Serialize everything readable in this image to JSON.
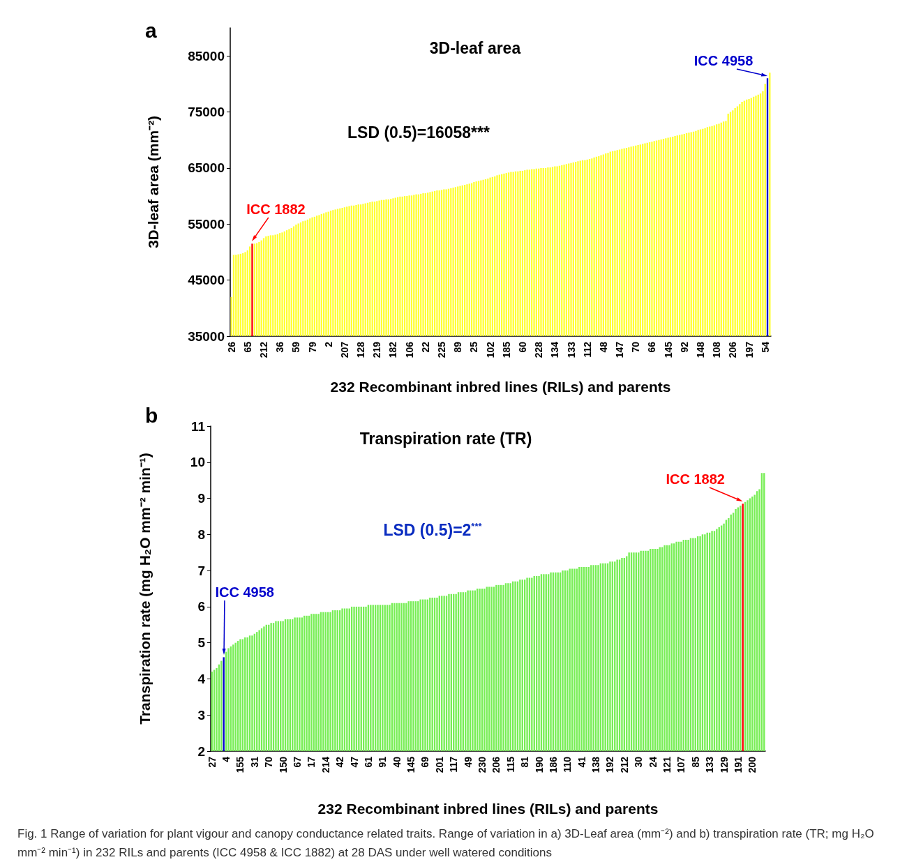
{
  "chart_data": [
    {
      "type": "bar",
      "title": "3D-leaf area",
      "xlabel": "232 Recombinant inbred lines (RILs) and parents",
      "ylabel": "3D-leaf area (mm⁻²)",
      "annotations": [
        "a",
        "ICC 1882",
        "ICC 4958",
        "LSD (0.5)=16058***"
      ],
      "categories": [
        "26",
        null,
        null,
        null,
        null,
        null,
        null,
        "65",
        null,
        null,
        null,
        null,
        null,
        null,
        "212",
        null,
        null,
        null,
        null,
        null,
        null,
        "36",
        null,
        null,
        null,
        null,
        null,
        null,
        "59",
        null,
        null,
        null,
        null,
        null,
        null,
        "79",
        null,
        null,
        null,
        null,
        null,
        null,
        "2",
        null,
        null,
        null,
        null,
        null,
        null,
        "207",
        null,
        null,
        null,
        null,
        null,
        null,
        "128",
        null,
        null,
        null,
        null,
        null,
        null,
        "219",
        null,
        null,
        null,
        null,
        null,
        null,
        "182",
        null,
        null,
        null,
        null,
        null,
        null,
        "106",
        null,
        null,
        null,
        null,
        null,
        null,
        "22",
        null,
        null,
        null,
        null,
        null,
        null,
        "225",
        null,
        null,
        null,
        null,
        null,
        null,
        "89",
        null,
        null,
        null,
        null,
        null,
        null,
        "25",
        null,
        null,
        null,
        null,
        null,
        null,
        "102",
        null,
        null,
        null,
        null,
        null,
        null,
        "185",
        null,
        null,
        null,
        null,
        null,
        null,
        "60",
        null,
        null,
        null,
        null,
        null,
        null,
        "228",
        null,
        null,
        null,
        null,
        null,
        null,
        "134",
        null,
        null,
        null,
        null,
        null,
        null,
        "133",
        null,
        null,
        null,
        null,
        null,
        null,
        "112",
        null,
        null,
        null,
        null,
        null,
        null,
        "48",
        null,
        null,
        null,
        null,
        null,
        null,
        "147",
        null,
        null,
        null,
        null,
        null,
        null,
        "70",
        null,
        null,
        null,
        null,
        null,
        null,
        "66",
        null,
        null,
        null,
        null,
        null,
        null,
        "145",
        null,
        null,
        null,
        null,
        null,
        null,
        "92",
        null,
        null,
        null,
        null,
        null,
        null,
        "148",
        null,
        null,
        null,
        null,
        null,
        null,
        "108",
        null,
        null,
        null,
        null,
        null,
        null,
        "206",
        null,
        null,
        null,
        null,
        null,
        null,
        "197",
        null,
        null,
        null,
        null,
        null,
        null,
        "54",
        null,
        null
      ],
      "values": [
        42000,
        49500,
        49500,
        49600,
        49700,
        49800,
        50000,
        50300,
        51000,
        51500,
        51500,
        51600,
        51800,
        52100,
        52500,
        52800,
        52900,
        53000,
        53000,
        53100,
        53200,
        53400,
        53500,
        53700,
        53900,
        54100,
        54300,
        54600,
        54900,
        55100,
        55300,
        55500,
        55600,
        55800,
        56000,
        56200,
        56300,
        56500,
        56600,
        56800,
        56900,
        57100,
        57200,
        57400,
        57500,
        57600,
        57700,
        57800,
        57900,
        58000,
        58100,
        58200,
        58300,
        58300,
        58400,
        58500,
        58500,
        58600,
        58700,
        58800,
        58900,
        59000,
        59000,
        59100,
        59200,
        59300,
        59300,
        59400,
        59400,
        59500,
        59600,
        59700,
        59800,
        59900,
        59900,
        60000,
        60000,
        60100,
        60100,
        60200,
        60300,
        60300,
        60400,
        60500,
        60500,
        60600,
        60700,
        60800,
        60900,
        61000,
        61000,
        61100,
        61200,
        61200,
        61300,
        61400,
        61500,
        61600,
        61700,
        61800,
        61900,
        62000,
        62100,
        62200,
        62300,
        62500,
        62600,
        62700,
        62800,
        62900,
        63000,
        63100,
        63300,
        63400,
        63500,
        63700,
        63800,
        63900,
        64000,
        64100,
        64200,
        64300,
        64300,
        64400,
        64400,
        64500,
        64500,
        64600,
        64700,
        64700,
        64800,
        64800,
        64900,
        64900,
        65000,
        65000,
        65000,
        65100,
        65100,
        65200,
        65300,
        65300,
        65400,
        65500,
        65600,
        65700,
        65800,
        65900,
        66000,
        66100,
        66200,
        66300,
        66400,
        66400,
        66500,
        66600,
        66700,
        66900,
        67000,
        67100,
        67300,
        67400,
        67600,
        67700,
        67900,
        68000,
        68100,
        68200,
        68300,
        68400,
        68500,
        68600,
        68700,
        68800,
        68900,
        69000,
        69100,
        69200,
        69300,
        69400,
        69500,
        69600,
        69700,
        69800,
        69900,
        70000,
        70100,
        70200,
        70300,
        70400,
        70500,
        70600,
        70700,
        70800,
        70900,
        71000,
        71100,
        71200,
        71300,
        71400,
        71500,
        71600,
        71800,
        71900,
        72000,
        72100,
        72300,
        72400,
        72500,
        72600,
        72800,
        72900,
        73100,
        73300,
        73400,
        74700,
        75000,
        75300,
        75700,
        76000,
        76400,
        76800,
        77000,
        77200,
        77300,
        77500,
        77700,
        77900,
        78100,
        78300,
        78700,
        80000,
        81000,
        82000
      ],
      "colors": [
        "#ffff33",
        "#ffff33",
        "#ffff33",
        "#ffff33",
        "#ffff33",
        "#ffff33",
        "#ffff33",
        "#ffff33",
        "#ffff33",
        "#ff0000",
        "#ffff33",
        "#ffff33",
        "#ffff33",
        "#ffff33",
        "#ffff33",
        "#ffff33",
        "#ffff33",
        "#ffff33",
        "#ffff33",
        "#ffff33",
        "#ffff33",
        "#ffff33",
        "#ffff33",
        "#ffff33",
        "#ffff33",
        "#ffff33",
        "#ffff33",
        "#ffff33",
        "#ffff33",
        "#ffff33",
        "#ffff33",
        "#ffff33",
        "#ffff33",
        "#ffff33",
        "#ffff33",
        "#ffff33",
        "#ffff33",
        "#ffff33",
        "#ffff33",
        "#ffff33",
        "#ffff33",
        "#ffff33",
        "#ffff33",
        "#ffff33",
        "#ffff33",
        "#ffff33",
        "#ffff33",
        "#ffff33",
        "#ffff33",
        "#ffff33",
        "#ffff33",
        "#ffff33",
        "#ffff33",
        "#ffff33",
        "#ffff33",
        "#ffff33",
        "#ffff33",
        "#ffff33",
        "#ffff33",
        "#ffff33",
        "#ffff33",
        "#ffff33",
        "#ffff33",
        "#ffff33",
        "#ffff33",
        "#ffff33",
        "#ffff33",
        "#ffff33",
        "#ffff33",
        "#ffff33",
        "#ffff33",
        "#ffff33",
        "#ffff33",
        "#ffff33",
        "#ffff33",
        "#ffff33",
        "#ffff33",
        "#ffff33",
        "#ffff33",
        "#ffff33",
        "#ffff33",
        "#ffff33",
        "#ffff33",
        "#ffff33",
        "#ffff33",
        "#ffff33",
        "#ffff33",
        "#ffff33",
        "#ffff33",
        "#ffff33",
        "#ffff33",
        "#ffff33",
        "#ffff33",
        "#ffff33",
        "#ffff33",
        "#ffff33",
        "#ffff33",
        "#ffff33",
        "#ffff33",
        "#ffff33",
        "#ffff33",
        "#ffff33",
        "#ffff33",
        "#ffff33",
        "#ffff33",
        "#ffff33",
        "#ffff33",
        "#ffff33",
        "#ffff33",
        "#ffff33",
        "#ffff33",
        "#ffff33",
        "#ffff33",
        "#ffff33",
        "#ffff33",
        "#ffff33",
        "#ffff33",
        "#ffff33",
        "#ffff33",
        "#ffff33",
        "#ffff33",
        "#ffff33",
        "#ffff33",
        "#ffff33",
        "#ffff33",
        "#ffff33",
        "#ffff33",
        "#ffff33",
        "#ffff33",
        "#ffff33",
        "#ffff33",
        "#ffff33",
        "#ffff33",
        "#ffff33",
        "#ffff33",
        "#ffff33",
        "#ffff33",
        "#ffff33",
        "#ffff33",
        "#ffff33",
        "#ffff33",
        "#ffff33",
        "#ffff33",
        "#ffff33",
        "#ffff33",
        "#ffff33",
        "#ffff33",
        "#ffff33",
        "#ffff33",
        "#ffff33",
        "#ffff33",
        "#ffff33",
        "#ffff33",
        "#ffff33",
        "#ffff33",
        "#ffff33",
        "#ffff33",
        "#ffff33",
        "#ffff33",
        "#ffff33",
        "#ffff33",
        "#ffff33",
        "#ffff33",
        "#ffff33",
        "#ffff33",
        "#ffff33",
        "#ffff33",
        "#ffff33",
        "#ffff33",
        "#ffff33",
        "#ffff33",
        "#ffff33",
        "#ffff33",
        "#ffff33",
        "#ffff33",
        "#ffff33",
        "#ffff33",
        "#ffff33",
        "#ffff33",
        "#ffff33",
        "#ffff33",
        "#ffff33",
        "#ffff33",
        "#ffff33",
        "#ffff33",
        "#ffff33",
        "#ffff33",
        "#ffff33",
        "#ffff33",
        "#ffff33",
        "#ffff33",
        "#ffff33",
        "#ffff33",
        "#ffff33",
        "#ffff33",
        "#ffff33",
        "#ffff33",
        "#ffff33",
        "#ffff33",
        "#ffff33",
        "#ffff33",
        "#ffff33",
        "#ffff33",
        "#ffff33",
        "#ffff33",
        "#ffff33",
        "#ffff33",
        "#ffff33",
        "#ffff33",
        "#ffff33",
        "#ffff33",
        "#ffff33",
        "#ffff33",
        "#ffff33",
        "#ffff33",
        "#ffff33",
        "#ffff33",
        "#ffff33",
        "#ffff33",
        "#ffff33",
        "#ffff33",
        "#ffff33",
        "#ffff33",
        "#ffff33",
        "#ffff33",
        "#ffff33",
        "#ffff33",
        "#ffff33",
        "#ffff33",
        "#ffff33",
        "#ffff33",
        "#ffff33",
        "#0000cc",
        "#ffff33"
      ],
      "ylim": [
        35000,
        90000
      ],
      "yticks": [
        35000,
        45000,
        55000,
        65000,
        75000,
        85000
      ]
    },
    {
      "type": "bar",
      "title": "Transpiration rate (TR)",
      "xlabel": "232 Recombinant inbred lines (RILs) and parents",
      "ylabel": "Transpiration rate (mg H₂O mm⁻² min⁻¹)",
      "annotations": [
        "b",
        "ICC 4958",
        "ICC 1882",
        "LSD (0.5)=2$^{***}$",
        "Fig. 1 Range of variation for plant vigour and canopy conductance related traits. Range of variation in a) 3D-Leaf area (mm⁻²) and b) transpiration rate (TR; mg H₂O mm⁻² min⁻¹) in 232 RILs and parents (ICC 4958 & ICC 1882) at 28 DAS under well watered conditions"
      ],
      "categories": [
        "27",
        null,
        null,
        null,
        null,
        null,
        "4",
        null,
        null,
        null,
        null,
        null,
        "155",
        null,
        null,
        null,
        null,
        null,
        "31",
        null,
        null,
        null,
        null,
        null,
        "70",
        null,
        null,
        null,
        null,
        null,
        "150",
        null,
        null,
        null,
        null,
        null,
        "67",
        null,
        null,
        null,
        null,
        null,
        "17",
        null,
        null,
        null,
        null,
        null,
        "214",
        null,
        null,
        null,
        null,
        null,
        "42",
        null,
        null,
        null,
        null,
        null,
        "47",
        null,
        null,
        null,
        null,
        null,
        "61",
        null,
        null,
        null,
        null,
        null,
        "91",
        null,
        null,
        null,
        null,
        null,
        "40",
        null,
        null,
        null,
        null,
        null,
        "145",
        null,
        null,
        null,
        null,
        null,
        "69",
        null,
        null,
        null,
        null,
        null,
        "201",
        null,
        null,
        null,
        null,
        null,
        "117",
        null,
        null,
        null,
        null,
        null,
        "49",
        null,
        null,
        null,
        null,
        null,
        "230",
        null,
        null,
        null,
        null,
        null,
        "206",
        null,
        null,
        null,
        null,
        null,
        "115",
        null,
        null,
        null,
        null,
        null,
        "81",
        null,
        null,
        null,
        null,
        null,
        "190",
        null,
        null,
        null,
        null,
        null,
        "186",
        null,
        null,
        null,
        null,
        null,
        "110",
        null,
        null,
        null,
        null,
        null,
        "41",
        null,
        null,
        null,
        null,
        null,
        "138",
        null,
        null,
        null,
        null,
        null,
        "192",
        null,
        null,
        null,
        null,
        null,
        "212",
        null,
        null,
        null,
        null,
        null,
        "30",
        null,
        null,
        null,
        null,
        null,
        "24",
        null,
        null,
        null,
        null,
        null,
        "121",
        null,
        null,
        null,
        null,
        null,
        "107",
        null,
        null,
        null,
        null,
        null,
        "85",
        null,
        null,
        null,
        null,
        null,
        "133",
        null,
        null,
        null,
        null,
        null,
        "129",
        null,
        null,
        null,
        null,
        null,
        "191",
        null,
        null,
        null,
        null,
        null,
        "200",
        null,
        null,
        null,
        null,
        null
      ],
      "values": [
        4.2,
        4.25,
        4.3,
        4.4,
        4.5,
        4.6,
        4.75,
        4.85,
        4.9,
        4.95,
        5.0,
        5.05,
        5.1,
        5.1,
        5.15,
        5.15,
        5.2,
        5.2,
        5.25,
        5.3,
        5.35,
        5.4,
        5.45,
        5.5,
        5.5,
        5.55,
        5.55,
        5.6,
        5.6,
        5.6,
        5.6,
        5.65,
        5.65,
        5.65,
        5.65,
        5.7,
        5.7,
        5.7,
        5.7,
        5.75,
        5.75,
        5.75,
        5.8,
        5.8,
        5.8,
        5.8,
        5.85,
        5.85,
        5.85,
        5.85,
        5.85,
        5.9,
        5.9,
        5.9,
        5.9,
        5.95,
        5.95,
        5.95,
        5.95,
        6.0,
        6.0,
        6.0,
        6.0,
        6.0,
        6.0,
        6.0,
        6.05,
        6.05,
        6.05,
        6.05,
        6.05,
        6.05,
        6.05,
        6.05,
        6.05,
        6.05,
        6.1,
        6.1,
        6.1,
        6.1,
        6.1,
        6.1,
        6.1,
        6.15,
        6.15,
        6.15,
        6.15,
        6.15,
        6.2,
        6.2,
        6.2,
        6.2,
        6.25,
        6.25,
        6.25,
        6.25,
        6.3,
        6.3,
        6.3,
        6.3,
        6.35,
        6.35,
        6.35,
        6.35,
        6.4,
        6.4,
        6.4,
        6.4,
        6.45,
        6.45,
        6.45,
        6.45,
        6.5,
        6.5,
        6.5,
        6.5,
        6.55,
        6.55,
        6.55,
        6.55,
        6.6,
        6.6,
        6.6,
        6.6,
        6.65,
        6.65,
        6.65,
        6.7,
        6.7,
        6.7,
        6.75,
        6.75,
        6.75,
        6.8,
        6.8,
        6.8,
        6.85,
        6.85,
        6.85,
        6.9,
        6.9,
        6.9,
        6.9,
        6.95,
        6.95,
        6.95,
        6.95,
        6.95,
        7.0,
        7.0,
        7.0,
        7.05,
        7.05,
        7.05,
        7.05,
        7.1,
        7.1,
        7.1,
        7.1,
        7.1,
        7.15,
        7.15,
        7.15,
        7.15,
        7.2,
        7.2,
        7.2,
        7.2,
        7.25,
        7.25,
        7.25,
        7.3,
        7.3,
        7.35,
        7.35,
        7.4,
        7.5,
        7.5,
        7.5,
        7.5,
        7.5,
        7.55,
        7.55,
        7.55,
        7.55,
        7.6,
        7.6,
        7.6,
        7.6,
        7.65,
        7.65,
        7.7,
        7.7,
        7.7,
        7.75,
        7.75,
        7.8,
        7.8,
        7.8,
        7.85,
        7.85,
        7.85,
        7.9,
        7.9,
        7.9,
        7.95,
        7.95,
        8.0,
        8.0,
        8.05,
        8.05,
        8.1,
        8.1,
        8.15,
        8.2,
        8.25,
        8.3,
        8.4,
        8.45,
        8.55,
        8.6,
        8.7,
        8.75,
        8.8,
        8.85,
        8.9,
        8.95,
        9.0,
        9.05,
        9.1,
        9.2,
        9.25,
        9.7,
        9.7
      ],
      "colors": [
        "#77ee55",
        "#77ee55",
        "#77ee55",
        "#77ee55",
        "#77ee55",
        "#0000cc",
        "#77ee55",
        "#77ee55",
        "#77ee55",
        "#77ee55",
        "#77ee55",
        "#77ee55",
        "#77ee55",
        "#77ee55",
        "#77ee55",
        "#77ee55",
        "#77ee55",
        "#77ee55",
        "#77ee55",
        "#77ee55",
        "#77ee55",
        "#77ee55",
        "#77ee55",
        "#77ee55",
        "#77ee55",
        "#77ee55",
        "#77ee55",
        "#77ee55",
        "#77ee55",
        "#77ee55",
        "#77ee55",
        "#77ee55",
        "#77ee55",
        "#77ee55",
        "#77ee55",
        "#77ee55",
        "#77ee55",
        "#77ee55",
        "#77ee55",
        "#77ee55",
        "#77ee55",
        "#77ee55",
        "#77ee55",
        "#77ee55",
        "#77ee55",
        "#77ee55",
        "#77ee55",
        "#77ee55",
        "#77ee55",
        "#77ee55",
        "#77ee55",
        "#77ee55",
        "#77ee55",
        "#77ee55",
        "#77ee55",
        "#77ee55",
        "#77ee55",
        "#77ee55",
        "#77ee55",
        "#77ee55",
        "#77ee55",
        "#77ee55",
        "#77ee55",
        "#77ee55",
        "#77ee55",
        "#77ee55",
        "#77ee55",
        "#77ee55",
        "#77ee55",
        "#77ee55",
        "#77ee55",
        "#77ee55",
        "#77ee55",
        "#77ee55",
        "#77ee55",
        "#77ee55",
        "#77ee55",
        "#77ee55",
        "#77ee55",
        "#77ee55",
        "#77ee55",
        "#77ee55",
        "#77ee55",
        "#77ee55",
        "#77ee55",
        "#77ee55",
        "#77ee55",
        "#77ee55",
        "#77ee55",
        "#77ee55",
        "#77ee55",
        "#77ee55",
        "#77ee55",
        "#77ee55",
        "#77ee55",
        "#77ee55",
        "#77ee55",
        "#77ee55",
        "#77ee55",
        "#77ee55",
        "#77ee55",
        "#77ee55",
        "#77ee55",
        "#77ee55",
        "#77ee55",
        "#77ee55",
        "#77ee55",
        "#77ee55",
        "#77ee55",
        "#77ee55",
        "#77ee55",
        "#77ee55",
        "#77ee55",
        "#77ee55",
        "#77ee55",
        "#77ee55",
        "#77ee55",
        "#77ee55",
        "#77ee55",
        "#77ee55",
        "#77ee55",
        "#77ee55",
        "#77ee55",
        "#77ee55",
        "#77ee55",
        "#77ee55",
        "#77ee55",
        "#77ee55",
        "#77ee55",
        "#77ee55",
        "#77ee55",
        "#77ee55",
        "#77ee55",
        "#77ee55",
        "#77ee55",
        "#77ee55",
        "#77ee55",
        "#77ee55",
        "#77ee55",
        "#77ee55",
        "#77ee55",
        "#77ee55",
        "#77ee55",
        "#77ee55",
        "#77ee55",
        "#77ee55",
        "#77ee55",
        "#77ee55",
        "#77ee55",
        "#77ee55",
        "#77ee55",
        "#77ee55",
        "#77ee55",
        "#77ee55",
        "#77ee55",
        "#77ee55",
        "#77ee55",
        "#77ee55",
        "#77ee55",
        "#77ee55",
        "#77ee55",
        "#77ee55",
        "#77ee55",
        "#77ee55",
        "#77ee55",
        "#77ee55",
        "#77ee55",
        "#77ee55",
        "#77ee55",
        "#77ee55",
        "#77ee55",
        "#77ee55",
        "#77ee55",
        "#77ee55",
        "#77ee55",
        "#77ee55",
        "#77ee55",
        "#77ee55",
        "#77ee55",
        "#77ee55",
        "#77ee55",
        "#77ee55",
        "#77ee55",
        "#77ee55",
        "#77ee55",
        "#77ee55",
        "#77ee55",
        "#77ee55",
        "#77ee55",
        "#77ee55",
        "#77ee55",
        "#77ee55",
        "#77ee55",
        "#77ee55",
        "#77ee55",
        "#77ee55",
        "#77ee55",
        "#77ee55",
        "#77ee55",
        "#77ee55",
        "#77ee55",
        "#77ee55",
        "#77ee55",
        "#77ee55",
        "#77ee55",
        "#77ee55",
        "#77ee55",
        "#77ee55",
        "#77ee55",
        "#77ee55",
        "#77ee55",
        "#77ee55",
        "#77ee55",
        "#77ee55",
        "#77ee55",
        "#77ee55",
        "#77ee55",
        "#77ee55",
        "#77ee55",
        "#77ee55",
        "#77ee55",
        "#77ee55",
        "#77ee55",
        "#77ee55",
        "#ff0000",
        "#77ee55",
        "#77ee55",
        "#77ee55",
        "#77ee55",
        "#77ee55",
        "#77ee55",
        "#77ee55",
        "#77ee55",
        "#77ee55"
      ],
      "ylim": [
        2,
        11
      ],
      "yticks": [
        2,
        3,
        4,
        5,
        6,
        7,
        8,
        9,
        10,
        11
      ]
    }
  ]
}
